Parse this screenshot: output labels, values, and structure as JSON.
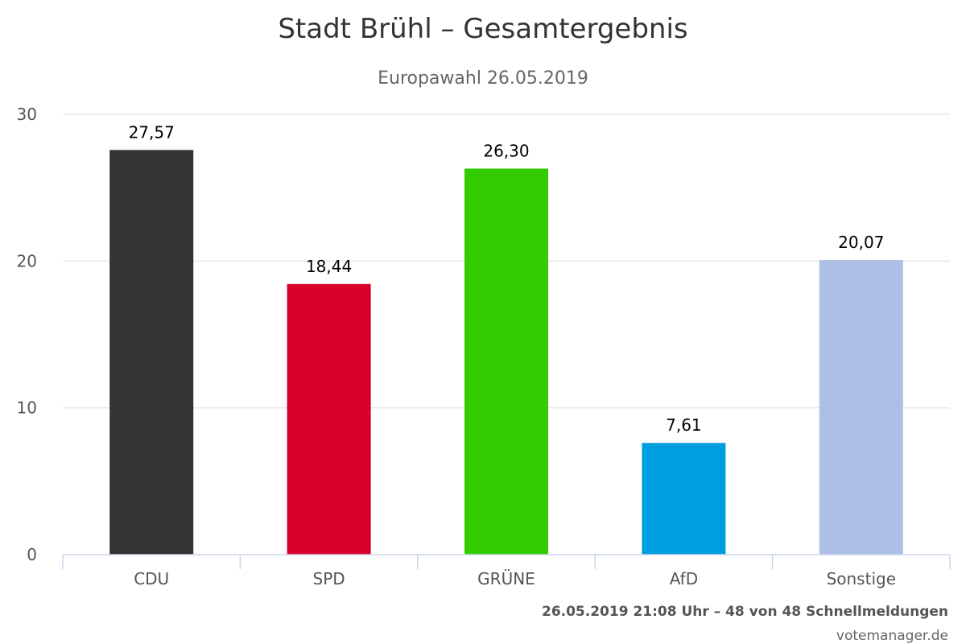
{
  "chart_data": {
    "type": "bar",
    "title": "Stadt Brühl – Gesamtergebnis",
    "subtitle": "Europawahl 26.05.2019",
    "categories": [
      "CDU",
      "SPD",
      "GRÜNE",
      "AfD",
      "Sonstige"
    ],
    "values": [
      27.57,
      18.44,
      26.3,
      7.61,
      20.07
    ],
    "value_labels": [
      "27,57",
      "18,44",
      "26,30",
      "7,61",
      "20,07"
    ],
    "colors": [
      "#333333",
      "#d7002a",
      "#33cc00",
      "#009ee0",
      "#adbfe5"
    ],
    "ylim": [
      0,
      30
    ],
    "yticks": [
      0,
      10,
      20,
      30
    ],
    "ytick_labels": [
      "0",
      "10",
      "20",
      "30"
    ],
    "xlabel": "",
    "ylabel": "",
    "grid": true,
    "legend": "none"
  },
  "footer": {
    "status": "26.05.2019 21:08 Uhr – 48 von 48 Schnellmeldungen",
    "credit": "votemanager.de"
  }
}
